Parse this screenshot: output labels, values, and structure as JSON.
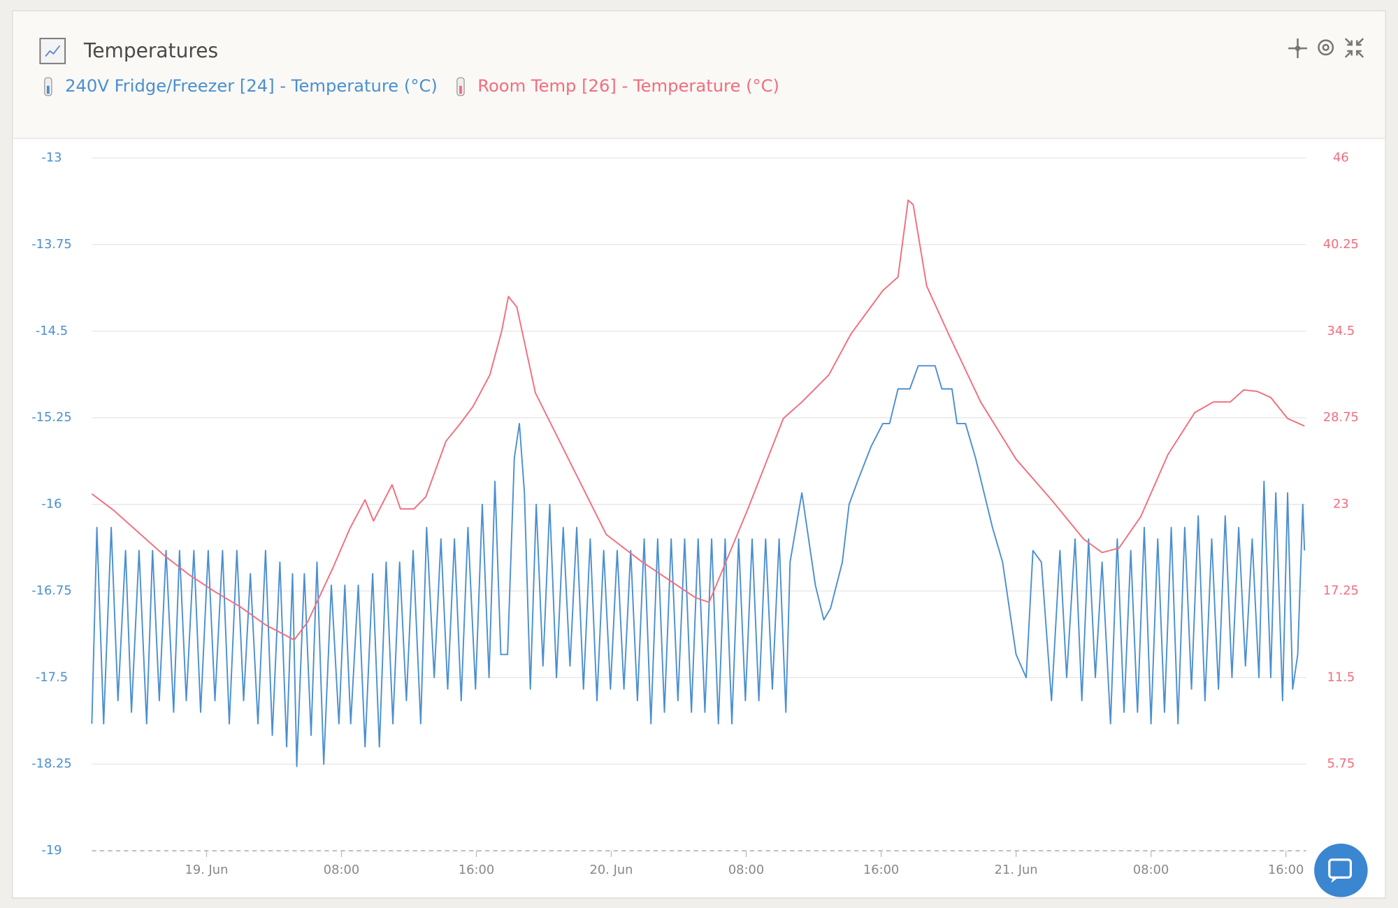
{
  "chart_data": {
    "type": "line",
    "title": "Temperatures",
    "xlim": [
      -6.8,
      65.2
    ],
    "xticks": [
      {
        "value": 0,
        "label": "19. Jun"
      },
      {
        "value": 8,
        "label": "08:00"
      },
      {
        "value": 16,
        "label": "16:00"
      },
      {
        "value": 24,
        "label": "20. Jun"
      },
      {
        "value": 32,
        "label": "08:00"
      },
      {
        "value": 40,
        "label": "16:00"
      },
      {
        "value": 48,
        "label": "21. Jun"
      },
      {
        "value": 56,
        "label": "08:00"
      },
      {
        "value": 64,
        "label": "16:00"
      }
    ],
    "ylim": [
      -19,
      -13
    ],
    "yticks": [
      -13,
      -13.75,
      -14.5,
      -15.25,
      -16,
      -16.75,
      -17.5,
      -18.25,
      -19
    ],
    "y2lim": [
      0,
      46
    ],
    "y2ticks": [
      46,
      40.25,
      34.5,
      28.75,
      23,
      17.25,
      11.5,
      5.75
    ],
    "grid": true,
    "series": [
      {
        "name": "240V Fridge/Freezer [24] - Temperature (°C)",
        "color": "#4a8fd0",
        "axis": "y",
        "x": [
          -6.8,
          -6.5,
          -6.1,
          -5.65,
          -5.25,
          -4.8,
          -4.45,
          -4,
          -3.55,
          -3.2,
          -2.8,
          -2.4,
          -1.95,
          -1.6,
          -1.2,
          -0.75,
          -0.35,
          0.1,
          0.5,
          0.95,
          1.35,
          1.8,
          2.2,
          2.6,
          3.05,
          3.5,
          3.9,
          4.35,
          4.75,
          5.1,
          5.35,
          5.8,
          6.2,
          6.55,
          6.95,
          7.4,
          7.85,
          8.2,
          8.55,
          9,
          9.4,
          9.85,
          10.25,
          10.65,
          11.05,
          11.45,
          11.85,
          12.25,
          12.7,
          13.05,
          13.5,
          13.9,
          14.3,
          14.7,
          15.1,
          15.5,
          15.95,
          16.35,
          16.75,
          17.1,
          17.45,
          17.85,
          18.25,
          18.55,
          18.85,
          19.2,
          19.55,
          19.95,
          20.35,
          20.75,
          21.15,
          21.55,
          21.95,
          22.35,
          22.75,
          23.15,
          23.55,
          23.95,
          24.35,
          24.75,
          25.15,
          25.55,
          25.95,
          26.35,
          26.75,
          27.15,
          27.55,
          27.95,
          28.35,
          28.75,
          29.15,
          29.55,
          29.95,
          30.35,
          30.75,
          31.15,
          31.55,
          31.95,
          32.35,
          32.75,
          33.15,
          33.55,
          33.95,
          34.35,
          34.6,
          35.3,
          36.1,
          36.6,
          37,
          37.7,
          38.1,
          38.6,
          39.4,
          40.1,
          40.5,
          41,
          41.7,
          42.2,
          43.2,
          43.6,
          44.2,
          44.5,
          45,
          45.6,
          46.1,
          46.6,
          47.2,
          47.7,
          48,
          48.6,
          49,
          49.5,
          50.1,
          50.6,
          51,
          51.5,
          51.9,
          52.3,
          52.7,
          53.1,
          53.6,
          54,
          54.4,
          54.8,
          55.2,
          55.6,
          56,
          56.4,
          56.8,
          57.2,
          57.6,
          58,
          58.4,
          58.8,
          59.2,
          59.6,
          60,
          60.4,
          60.8,
          61.2,
          61.6,
          62,
          62.4,
          62.7,
          63.1,
          63.4,
          63.8,
          64.1,
          64.4,
          64.7,
          65,
          65.1
        ],
        "values": [
          -17.9,
          -16.2,
          -17.9,
          -16.2,
          -17.7,
          -16.4,
          -17.8,
          -16.4,
          -17.9,
          -16.4,
          -17.7,
          -16.4,
          -17.8,
          -16.4,
          -17.7,
          -16.4,
          -17.8,
          -16.4,
          -17.7,
          -16.4,
          -17.9,
          -16.4,
          -17.7,
          -16.6,
          -17.9,
          -16.4,
          -18,
          -16.5,
          -18.1,
          -16.6,
          -18.27,
          -16.6,
          -18,
          -16.5,
          -18.25,
          -16.7,
          -17.9,
          -16.7,
          -17.9,
          -16.7,
          -18.1,
          -16.6,
          -18.1,
          -16.5,
          -17.9,
          -16.5,
          -17.7,
          -16.4,
          -17.9,
          -16.2,
          -17.5,
          -16.3,
          -17.6,
          -16.3,
          -17.7,
          -16.2,
          -17.6,
          -16,
          -17.5,
          -15.8,
          -17.3,
          -17.3,
          -15.6,
          -15.3,
          -15.9,
          -17.6,
          -16,
          -17.4,
          -16,
          -17.5,
          -16.2,
          -17.4,
          -16.2,
          -17.6,
          -16.3,
          -17.7,
          -16.4,
          -17.6,
          -16.4,
          -17.6,
          -16.4,
          -17.7,
          -16.3,
          -17.9,
          -16.3,
          -17.8,
          -16.3,
          -17.7,
          -16.3,
          -17.8,
          -16.3,
          -17.8,
          -16.3,
          -17.9,
          -16.3,
          -17.9,
          -16.3,
          -17.7,
          -16.3,
          -17.7,
          -16.3,
          -17.6,
          -16.3,
          -17.8,
          -16.5,
          -15.9,
          -16.7,
          -17,
          -16.9,
          -16.5,
          -16,
          -15.8,
          -15.5,
          -15.3,
          -15.3,
          -15,
          -15,
          -14.8,
          -14.8,
          -15,
          -15,
          -15.3,
          -15.3,
          -15.6,
          -15.9,
          -16.2,
          -16.5,
          -17,
          -17.3,
          -17.5,
          -16.4,
          -16.5,
          -17.7,
          -16.4,
          -17.5,
          -16.3,
          -17.7,
          -16.3,
          -17.5,
          -16.5,
          -17.9,
          -16.3,
          -17.8,
          -16.4,
          -17.8,
          -16.2,
          -17.9,
          -16.3,
          -17.8,
          -16.2,
          -17.9,
          -16.2,
          -17.6,
          -16.1,
          -17.7,
          -16.3,
          -17.6,
          -16.1,
          -17.5,
          -16.2,
          -17.4,
          -16.3,
          -17.5,
          -15.8,
          -17.5,
          -15.9,
          -17.7,
          -15.9,
          -17.6,
          -17.3,
          -16,
          -16.4
        ]
      },
      {
        "name": "Room Temp [26] - Temperature (°C)",
        "color": "#f26d7d",
        "axis": "y2",
        "x": [
          -6.8,
          -5.5,
          -4,
          -2.5,
          -1,
          0.5,
          2,
          3.5,
          5.2,
          6,
          7.5,
          8.5,
          9.4,
          9.9,
          11,
          11.5,
          12.3,
          13,
          14.2,
          15,
          15.8,
          16.8,
          17.5,
          17.9,
          18.4,
          19.5,
          21.6,
          23.7,
          25.8,
          29,
          29.8,
          32.1,
          34.2,
          35.3,
          36.9,
          38.2,
          40.1,
          41,
          41.6,
          41.9,
          42.7,
          44,
          45.9,
          48,
          50.1,
          52,
          53.1,
          54.1,
          55.4,
          57,
          58.6,
          59.7,
          60.7,
          61.5,
          62.3,
          63.1,
          64.1,
          65.1
        ],
        "values": [
          23.7,
          22.6,
          21.1,
          19.6,
          18.3,
          17.2,
          16.2,
          15,
          14,
          15.2,
          18.8,
          21.4,
          23.3,
          21.9,
          24.3,
          22.7,
          22.7,
          23.5,
          27.2,
          28.3,
          29.5,
          31.6,
          34.5,
          36.8,
          36.1,
          30.4,
          25.7,
          21,
          19.2,
          16.8,
          16.5,
          22.7,
          28.7,
          29.8,
          31.6,
          34.3,
          37.2,
          38.1,
          43.2,
          42.9,
          37.5,
          34.3,
          29.8,
          26,
          23.3,
          20.7,
          19.8,
          20.1,
          22.2,
          26.3,
          29.1,
          29.8,
          29.8,
          30.6,
          30.5,
          30.1,
          28.7,
          28.2
        ]
      }
    ]
  }
}
